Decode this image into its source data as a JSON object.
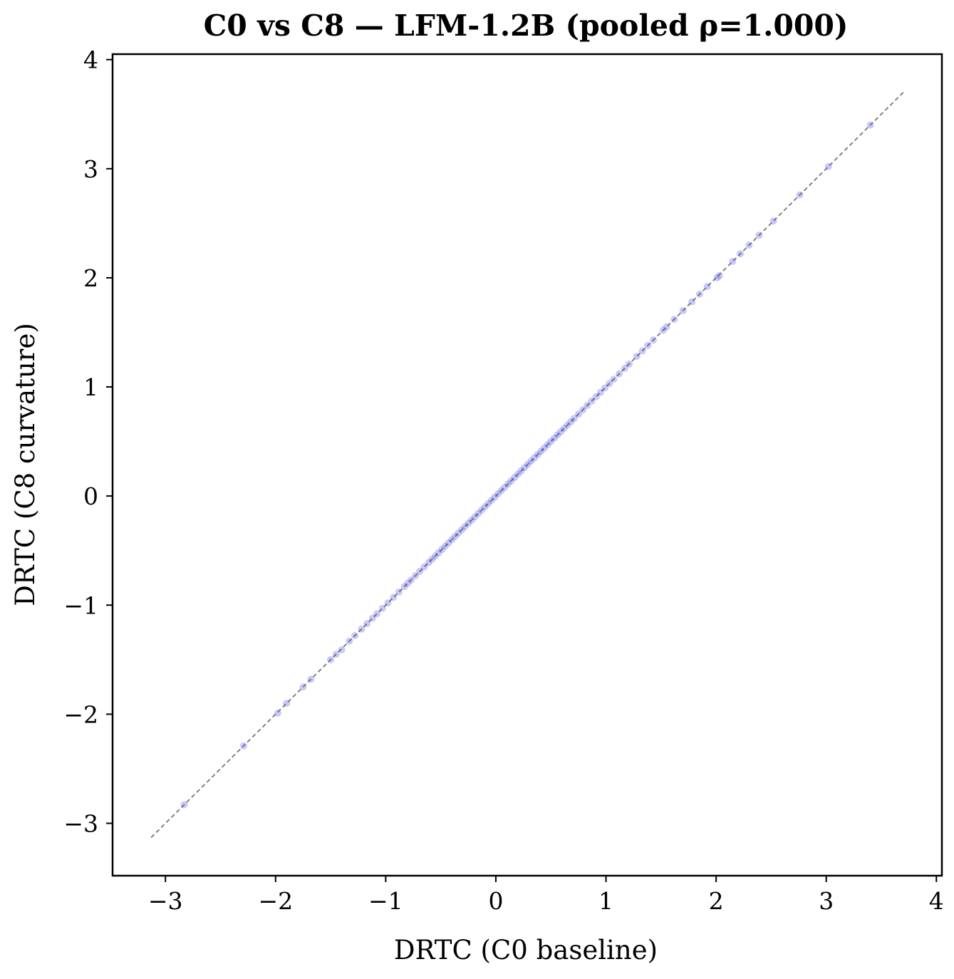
{
  "chart_data": {
    "type": "scatter",
    "title": "C0 vs C8 — LFM-1.2B  (pooled ρ=1.000)",
    "xlabel": "DRTC (C0 baseline)",
    "ylabel": "DRTC (C8 curvature)",
    "xlim": [
      -3.48,
      4.05
    ],
    "ylim": [
      -3.48,
      4.05
    ],
    "xticks": [
      -3,
      -2,
      -1,
      0,
      1,
      2,
      3,
      4
    ],
    "yticks": [
      -3,
      -2,
      -1,
      0,
      1,
      2,
      3,
      4
    ],
    "xtick_labels": [
      "−3",
      "−2",
      "−1",
      "0",
      "1",
      "2",
      "3",
      "4"
    ],
    "ytick_labels": [
      "−3",
      "−2",
      "−1",
      "0",
      "1",
      "2",
      "3",
      "4"
    ],
    "grid": false,
    "point_color": "#4040e0",
    "reference_line": {
      "style": "dashed",
      "color": "#777777",
      "from": [
        -3.13,
        -3.13
      ],
      "to": [
        3.71,
        3.71
      ]
    },
    "series": [
      {
        "points": [
          [
            -2.83,
            -2.83
          ],
          [
            -2.29,
            -2.29
          ],
          [
            -1.98,
            -1.99
          ],
          [
            -1.9,
            -1.9
          ],
          [
            -1.75,
            -1.75
          ],
          [
            -1.68,
            -1.68
          ],
          [
            -1.5,
            -1.5
          ],
          [
            -1.45,
            -1.45
          ],
          [
            -1.4,
            -1.41
          ],
          [
            -1.33,
            -1.33
          ],
          [
            -1.28,
            -1.28
          ],
          [
            -1.22,
            -1.22
          ],
          [
            -1.17,
            -1.17
          ],
          [
            -1.12,
            -1.12
          ],
          [
            -1.08,
            -1.08
          ],
          [
            -1.03,
            -1.03
          ],
          [
            -0.98,
            -0.98
          ],
          [
            -0.93,
            -0.93
          ],
          [
            -0.88,
            -0.88
          ],
          [
            -0.83,
            -0.83
          ],
          [
            -0.8,
            -0.8
          ],
          [
            -0.77,
            -0.77
          ],
          [
            -0.73,
            -0.73
          ],
          [
            -0.69,
            -0.69
          ],
          [
            -0.65,
            -0.65
          ],
          [
            -0.61,
            -0.61
          ],
          [
            -0.58,
            -0.58
          ],
          [
            -0.55,
            -0.55
          ],
          [
            -0.52,
            -0.52
          ],
          [
            -0.49,
            -0.49
          ],
          [
            -0.46,
            -0.46
          ],
          [
            -0.43,
            -0.43
          ],
          [
            -0.4,
            -0.4
          ],
          [
            -0.37,
            -0.37
          ],
          [
            -0.34,
            -0.34
          ],
          [
            -0.31,
            -0.31
          ],
          [
            -0.28,
            -0.28
          ],
          [
            -0.25,
            -0.25
          ],
          [
            -0.22,
            -0.22
          ],
          [
            -0.19,
            -0.19
          ],
          [
            -0.16,
            -0.16
          ],
          [
            -0.13,
            -0.13
          ],
          [
            -0.1,
            -0.1
          ],
          [
            -0.07,
            -0.07
          ],
          [
            -0.04,
            -0.04
          ],
          [
            -0.01,
            -0.01
          ],
          [
            0.02,
            0.02
          ],
          [
            0.05,
            0.05
          ],
          [
            0.08,
            0.08
          ],
          [
            0.11,
            0.11
          ],
          [
            0.14,
            0.14
          ],
          [
            0.17,
            0.17
          ],
          [
            0.2,
            0.2
          ],
          [
            0.23,
            0.23
          ],
          [
            0.26,
            0.26
          ],
          [
            0.29,
            0.29
          ],
          [
            0.32,
            0.32
          ],
          [
            0.35,
            0.35
          ],
          [
            0.38,
            0.38
          ],
          [
            0.41,
            0.41
          ],
          [
            0.44,
            0.44
          ],
          [
            0.47,
            0.47
          ],
          [
            0.5,
            0.5
          ],
          [
            0.53,
            0.53
          ],
          [
            0.56,
            0.56
          ],
          [
            0.59,
            0.59
          ],
          [
            0.62,
            0.62
          ],
          [
            0.65,
            0.65
          ],
          [
            0.68,
            0.68
          ],
          [
            0.71,
            0.71
          ],
          [
            0.75,
            0.75
          ],
          [
            0.79,
            0.79
          ],
          [
            0.83,
            0.83
          ],
          [
            0.87,
            0.87
          ],
          [
            0.91,
            0.91
          ],
          [
            0.95,
            0.95
          ],
          [
            0.99,
            0.99
          ],
          [
            1.03,
            1.03
          ],
          [
            1.07,
            1.07
          ],
          [
            1.12,
            1.12
          ],
          [
            1.17,
            1.17
          ],
          [
            1.21,
            1.21
          ],
          [
            1.28,
            1.28
          ],
          [
            1.33,
            1.33
          ],
          [
            1.38,
            1.38
          ],
          [
            1.43,
            1.43
          ],
          [
            1.52,
            1.52
          ],
          [
            1.55,
            1.55
          ],
          [
            1.62,
            1.62
          ],
          [
            1.7,
            1.7
          ],
          [
            1.78,
            1.78
          ],
          [
            1.85,
            1.85
          ],
          [
            1.92,
            1.92
          ],
          [
            2.01,
            2.0
          ],
          [
            2.03,
            2.02
          ],
          [
            2.15,
            2.15
          ],
          [
            2.22,
            2.22
          ],
          [
            2.3,
            2.3
          ],
          [
            2.39,
            2.39
          ],
          [
            2.52,
            2.52
          ],
          [
            2.76,
            2.76
          ],
          [
            3.02,
            3.02
          ],
          [
            3.4,
            3.4
          ]
        ]
      }
    ]
  }
}
